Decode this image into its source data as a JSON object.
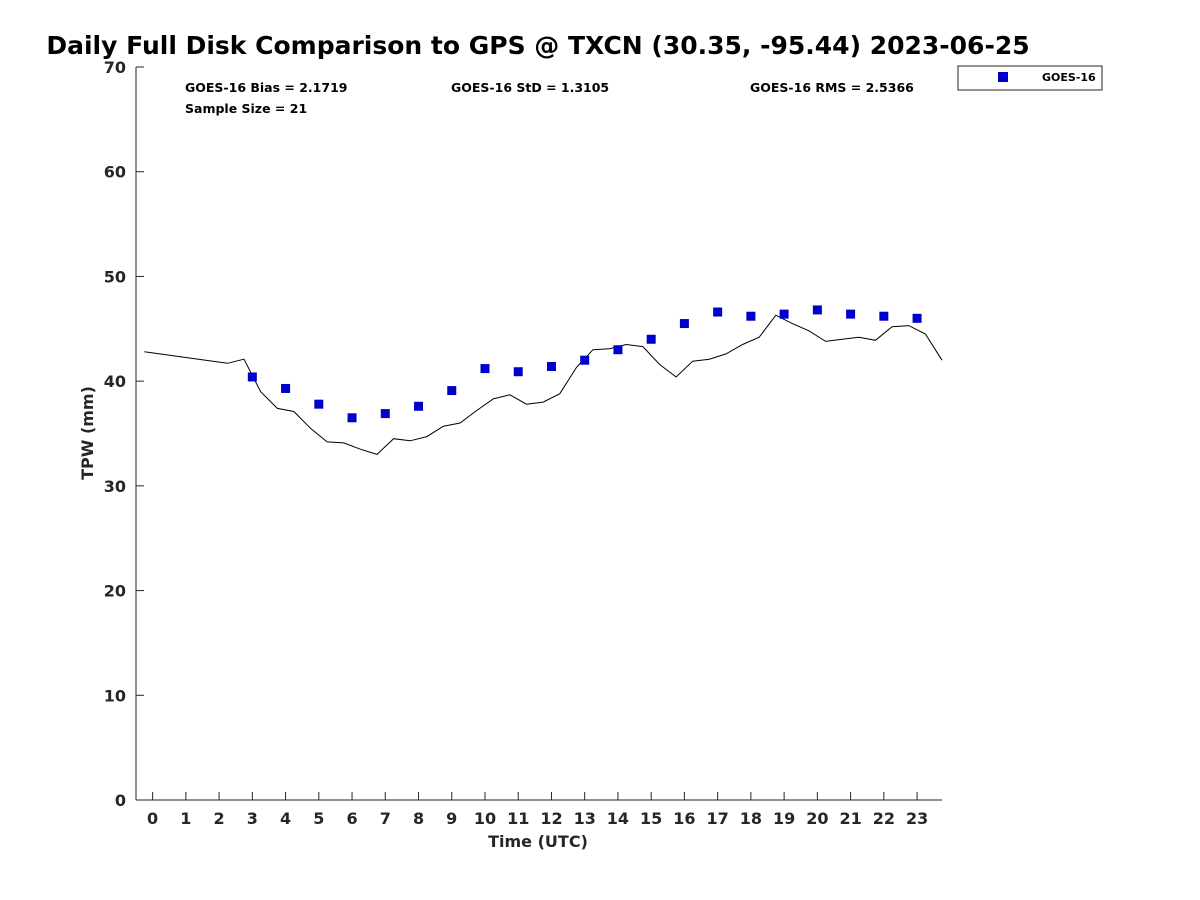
{
  "chart_data": {
    "type": "scatter",
    "title": "Daily Full Disk Comparison to GPS @ TXCN (30.35, -95.44) 2023-06-25",
    "xlabel": "Time (UTC)",
    "ylabel": "TPW (mm)",
    "xlim": [
      -0.5,
      23.75
    ],
    "ylim": [
      0,
      70
    ],
    "xticks": [
      0,
      1,
      2,
      3,
      4,
      5,
      6,
      7,
      8,
      9,
      10,
      11,
      12,
      13,
      14,
      15,
      16,
      17,
      18,
      19,
      20,
      21,
      22,
      23
    ],
    "yticks": [
      0,
      10,
      20,
      30,
      40,
      50,
      60,
      70
    ],
    "grid": false,
    "legend_position": "top-right-outside",
    "stats": {
      "bias": "GOES-16 Bias = 2.1719",
      "std": "GOES-16 StD = 1.3105",
      "rms": "GOES-16 RMS = 2.5366",
      "sample": "Sample Size = 21"
    },
    "series": [
      {
        "name": "GOES-16",
        "kind": "scatter",
        "marker": "square",
        "color": "#0000cc",
        "x": [
          3,
          4,
          5,
          6,
          7,
          8,
          9,
          10,
          11,
          12,
          13,
          14,
          15,
          16,
          17,
          18,
          19,
          20,
          21,
          22,
          23
        ],
        "y": [
          40.4,
          39.3,
          37.8,
          36.5,
          36.9,
          37.6,
          39.1,
          41.2,
          40.9,
          41.4,
          42.0,
          43.0,
          44.0,
          45.5,
          46.6,
          46.2,
          46.4,
          46.8,
          46.4,
          46.2,
          46.0
        ]
      },
      {
        "kind": "line",
        "color": "#000000",
        "x": [
          -0.25,
          2.25,
          2.75,
          3.25,
          3.75,
          4.25,
          4.75,
          5.25,
          5.75,
          6.25,
          6.75,
          7.25,
          7.75,
          8.25,
          8.75,
          9.25,
          9.75,
          10.25,
          10.75,
          11.25,
          11.75,
          12.25,
          12.75,
          13.25,
          13.75,
          14.25,
          14.75,
          15.25,
          15.75,
          16.25,
          16.75,
          17.25,
          17.75,
          18.25,
          18.75,
          19.25,
          19.75,
          20.25,
          20.75,
          21.25,
          21.75,
          22.25,
          22.75,
          23.25,
          23.75
        ],
        "y": [
          42.8,
          41.7,
          42.1,
          39.0,
          37.4,
          37.1,
          35.5,
          34.2,
          34.1,
          33.5,
          33.0,
          34.5,
          34.3,
          34.7,
          35.7,
          36.0,
          37.2,
          38.3,
          38.7,
          37.8,
          38.0,
          38.8,
          41.3,
          43.0,
          43.1,
          43.5,
          43.3,
          41.6,
          40.4,
          41.9,
          42.1,
          42.6,
          43.5,
          44.2,
          46.3,
          45.5,
          44.8,
          43.8,
          44.0,
          44.2,
          43.9,
          45.2,
          45.3,
          44.5,
          42.0
        ]
      }
    ]
  }
}
